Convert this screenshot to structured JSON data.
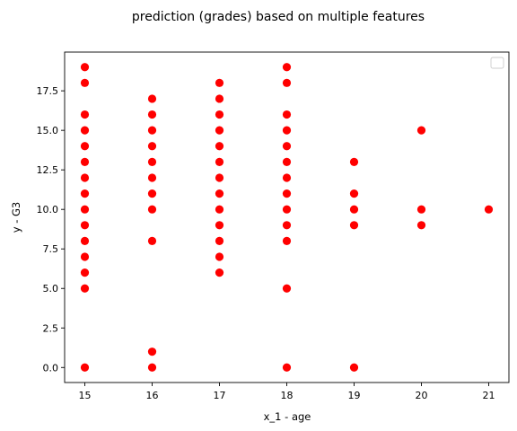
{
  "chart_data": {
    "type": "scatter",
    "title": "prediction (grades) based on multiple features",
    "xlabel": "x_1 - age",
    "ylabel": "y - G3",
    "xlim": [
      14.7,
      21.3
    ],
    "ylim": [
      -0.95,
      19.95
    ],
    "xticks": [
      15,
      16,
      17,
      18,
      19,
      20,
      21
    ],
    "xtick_labels": [
      "15",
      "16",
      "17",
      "18",
      "19",
      "20",
      "21"
    ],
    "yticks": [
      0,
      2.5,
      5,
      7.5,
      10,
      12.5,
      15,
      17.5
    ],
    "ytick_labels": [
      "0.0",
      "2.5",
      "5.0",
      "7.5",
      "10.0",
      "12.5",
      "15.0",
      "17.5"
    ],
    "grid": false,
    "legend": {
      "placement": "top-right",
      "entries": []
    },
    "series": [
      {
        "color": "#ff0000",
        "marker": "circle",
        "points": [
          {
            "x": 15,
            "y": 0
          },
          {
            "x": 15,
            "y": 5
          },
          {
            "x": 15,
            "y": 6
          },
          {
            "x": 15,
            "y": 7
          },
          {
            "x": 15,
            "y": 8
          },
          {
            "x": 15,
            "y": 9
          },
          {
            "x": 15,
            "y": 10
          },
          {
            "x": 15,
            "y": 11
          },
          {
            "x": 15,
            "y": 12
          },
          {
            "x": 15,
            "y": 13
          },
          {
            "x": 15,
            "y": 14
          },
          {
            "x": 15,
            "y": 15
          },
          {
            "x": 15,
            "y": 16
          },
          {
            "x": 15,
            "y": 18
          },
          {
            "x": 15,
            "y": 19
          },
          {
            "x": 16,
            "y": 0
          },
          {
            "x": 16,
            "y": 1
          },
          {
            "x": 16,
            "y": 8
          },
          {
            "x": 16,
            "y": 10
          },
          {
            "x": 16,
            "y": 11
          },
          {
            "x": 16,
            "y": 12
          },
          {
            "x": 16,
            "y": 13
          },
          {
            "x": 16,
            "y": 14
          },
          {
            "x": 16,
            "y": 15
          },
          {
            "x": 16,
            "y": 16
          },
          {
            "x": 16,
            "y": 17
          },
          {
            "x": 17,
            "y": 6
          },
          {
            "x": 17,
            "y": 7
          },
          {
            "x": 17,
            "y": 8
          },
          {
            "x": 17,
            "y": 9
          },
          {
            "x": 17,
            "y": 10
          },
          {
            "x": 17,
            "y": 11
          },
          {
            "x": 17,
            "y": 12
          },
          {
            "x": 17,
            "y": 13
          },
          {
            "x": 17,
            "y": 14
          },
          {
            "x": 17,
            "y": 15
          },
          {
            "x": 17,
            "y": 16
          },
          {
            "x": 17,
            "y": 17
          },
          {
            "x": 17,
            "y": 18
          },
          {
            "x": 18,
            "y": 0
          },
          {
            "x": 18,
            "y": 5
          },
          {
            "x": 18,
            "y": 8
          },
          {
            "x": 18,
            "y": 9
          },
          {
            "x": 18,
            "y": 10
          },
          {
            "x": 18,
            "y": 11
          },
          {
            "x": 18,
            "y": 12
          },
          {
            "x": 18,
            "y": 13
          },
          {
            "x": 18,
            "y": 14
          },
          {
            "x": 18,
            "y": 15
          },
          {
            "x": 18,
            "y": 16
          },
          {
            "x": 18,
            "y": 18
          },
          {
            "x": 18,
            "y": 19
          },
          {
            "x": 19,
            "y": 0
          },
          {
            "x": 19,
            "y": 9
          },
          {
            "x": 19,
            "y": 10
          },
          {
            "x": 19,
            "y": 11
          },
          {
            "x": 19,
            "y": 13
          },
          {
            "x": 20,
            "y": 9
          },
          {
            "x": 20,
            "y": 10
          },
          {
            "x": 20,
            "y": 15
          },
          {
            "x": 21,
            "y": 10
          }
        ]
      }
    ]
  }
}
